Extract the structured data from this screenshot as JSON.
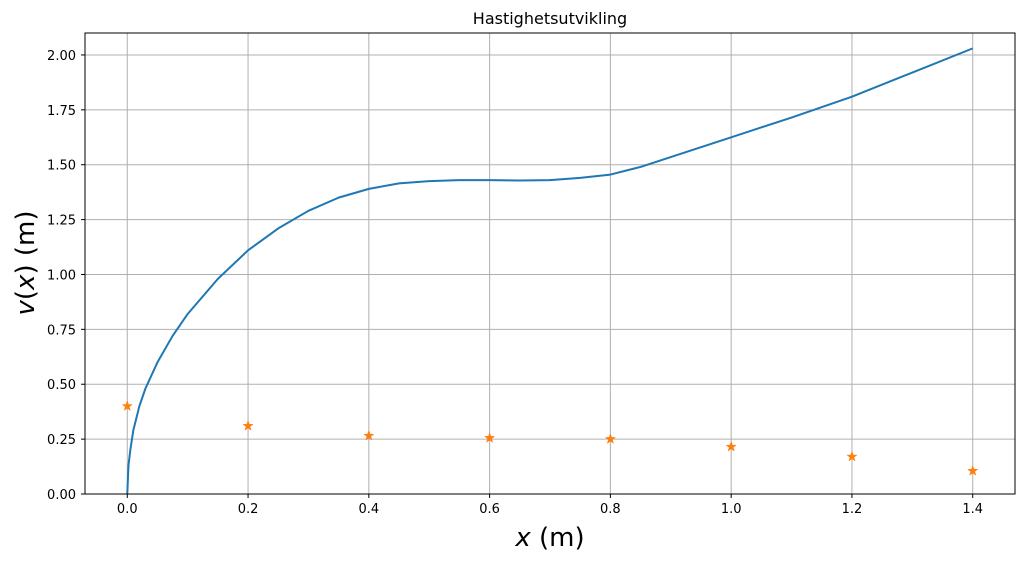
{
  "chart_data": {
    "type": "line",
    "title": "Hastighetsutvikling",
    "xlabel": {
      "var": "x",
      "unit": " (m)"
    },
    "ylabel": {
      "var": "v",
      "paren_open": "(",
      "arg": "x",
      "paren_close": ")",
      "unit": " (m)"
    },
    "xlim": [
      -0.07,
      1.47
    ],
    "ylim": [
      0,
      2.1
    ],
    "xticks": [
      0.0,
      0.2,
      0.4,
      0.6,
      0.8,
      1.0,
      1.2,
      1.4
    ],
    "xtick_labels": [
      "0.0",
      "0.2",
      "0.4",
      "0.6",
      "0.8",
      "1.0",
      "1.2",
      "1.4"
    ],
    "yticks": [
      0.0,
      0.25,
      0.5,
      0.75,
      1.0,
      1.25,
      1.5,
      1.75,
      2.0
    ],
    "ytick_labels": [
      "0.00",
      "0.25",
      "0.50",
      "0.75",
      "1.00",
      "1.25",
      "1.50",
      "1.75",
      "2.00"
    ],
    "grid": true,
    "series": [
      {
        "kind": "line",
        "color": "#1f77b4",
        "x": [
          0.0,
          0.002,
          0.005,
          0.01,
          0.02,
          0.03,
          0.05,
          0.075,
          0.1,
          0.15,
          0.2,
          0.25,
          0.3,
          0.35,
          0.4,
          0.45,
          0.5,
          0.55,
          0.6,
          0.65,
          0.7,
          0.75,
          0.8,
          0.85,
          0.9,
          0.95,
          1.0,
          1.1,
          1.2,
          1.3,
          1.4
        ],
        "y": [
          0.0,
          0.13,
          0.2,
          0.29,
          0.4,
          0.48,
          0.6,
          0.72,
          0.82,
          0.98,
          1.11,
          1.21,
          1.29,
          1.35,
          1.39,
          1.415,
          1.425,
          1.43,
          1.43,
          1.428,
          1.43,
          1.44,
          1.455,
          1.49,
          1.535,
          1.58,
          1.625,
          1.715,
          1.81,
          1.92,
          2.03
        ]
      },
      {
        "kind": "scatter",
        "marker": "star",
        "color": "#ff7f0e",
        "x": [
          0.0,
          0.2,
          0.4,
          0.6,
          0.8,
          1.0,
          1.2,
          1.4
        ],
        "y": [
          0.4,
          0.31,
          0.265,
          0.255,
          0.25,
          0.215,
          0.17,
          0.105
        ]
      }
    ]
  }
}
